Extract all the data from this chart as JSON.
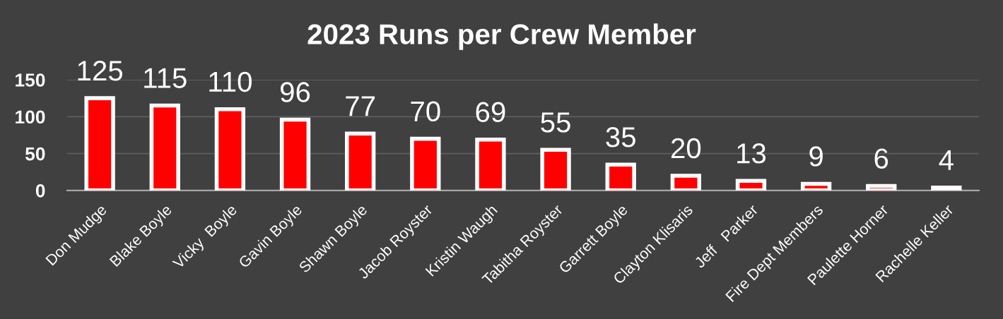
{
  "chart_data": {
    "type": "bar",
    "title": "2023 Runs per Crew Member",
    "categories": [
      "Don Mudge",
      "Blake Boyle",
      "Vicky  Boyle",
      "Gavin Boyle",
      "Shawn Boyle",
      "Jacob Royster",
      "Kristin Waugh",
      "Tabitha Royster",
      "Garrett Boyle",
      "Clayton Klisaris",
      "Jeff   Parker",
      "Fire Dept Members",
      "Paulette Horner",
      "Rachelle Keller"
    ],
    "values": [
      125,
      115,
      110,
      96,
      77,
      70,
      69,
      55,
      35,
      20,
      13,
      9,
      6,
      4
    ],
    "color": "#ff0000",
    "ylim": [
      0,
      150
    ],
    "yticks": [
      0,
      50,
      100,
      150
    ],
    "grid": "y",
    "data_labels": true
  }
}
